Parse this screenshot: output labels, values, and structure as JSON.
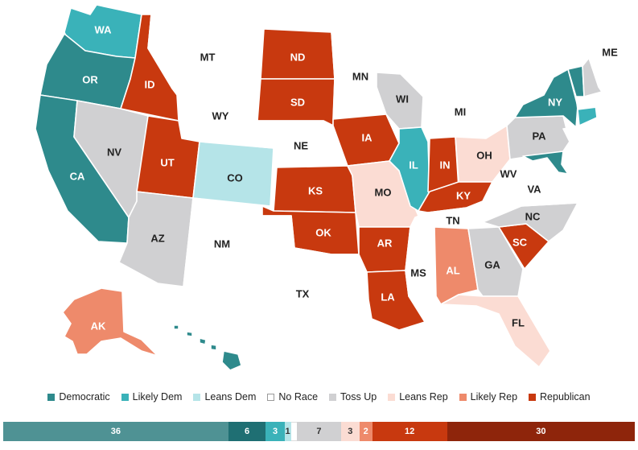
{
  "colors": {
    "Democratic": "#2e8a8c",
    "Likely Dem": "#3ab2b9",
    "Leans Dem": "#b5e4e8",
    "No Race": "#ffffff",
    "Toss Up": "#d0d0d2",
    "Leans Rep": "#fbdcd3",
    "Likely Rep": "#ee8a6b",
    "Republican": "#c8390f"
  },
  "states": {
    "WA": {
      "label": "WA",
      "rating": "Likely Dem"
    },
    "OR": {
      "label": "OR",
      "rating": "Democratic"
    },
    "CA": {
      "label": "CA",
      "rating": "Democratic"
    },
    "ID": {
      "label": "ID",
      "rating": "Republican"
    },
    "NV": {
      "label": "NV",
      "rating": "Toss Up"
    },
    "MT": {
      "label": "MT",
      "rating": "No Race"
    },
    "WY": {
      "label": "WY",
      "rating": "No Race"
    },
    "UT": {
      "label": "UT",
      "rating": "Republican"
    },
    "AZ": {
      "label": "AZ",
      "rating": "Toss Up"
    },
    "CO": {
      "label": "CO",
      "rating": "Leans Dem"
    },
    "NM": {
      "label": "NM",
      "rating": "No Race"
    },
    "ND": {
      "label": "ND",
      "rating": "Republican"
    },
    "SD": {
      "label": "SD",
      "rating": "Republican"
    },
    "NE": {
      "label": "NE",
      "rating": "No Race"
    },
    "KS": {
      "label": "KS",
      "rating": "Republican"
    },
    "OK": {
      "label": "OK",
      "rating": "Republican"
    },
    "TX": {
      "label": "TX",
      "rating": "No Race"
    },
    "MN": {
      "label": "MN",
      "rating": "No Race"
    },
    "IA": {
      "label": "IA",
      "rating": "Republican"
    },
    "MO": {
      "label": "MO",
      "rating": "Leans Rep"
    },
    "AR": {
      "label": "AR",
      "rating": "Republican"
    },
    "LA": {
      "label": "LA",
      "rating": "Republican"
    },
    "WI": {
      "label": "WI",
      "rating": "Toss Up"
    },
    "IL": {
      "label": "IL",
      "rating": "Likely Dem"
    },
    "MI": {
      "label": "MI",
      "rating": "No Race"
    },
    "IN": {
      "label": "IN",
      "rating": "Republican"
    },
    "OH": {
      "label": "OH",
      "rating": "Leans Rep"
    },
    "KY": {
      "label": "KY",
      "rating": "Republican"
    },
    "TN": {
      "label": "TN",
      "rating": "No Race"
    },
    "MS": {
      "label": "MS",
      "rating": "No Race"
    },
    "AL": {
      "label": "AL",
      "rating": "Likely Rep"
    },
    "GA": {
      "label": "GA",
      "rating": "Toss Up"
    },
    "FL": {
      "label": "FL",
      "rating": "Leans Rep"
    },
    "SC": {
      "label": "SC",
      "rating": "Republican"
    },
    "NC": {
      "label": "NC",
      "rating": "Toss Up"
    },
    "VA": {
      "label": "VA",
      "rating": "No Race"
    },
    "WV": {
      "label": "WV",
      "rating": "No Race"
    },
    "PA": {
      "label": "PA",
      "rating": "Toss Up"
    },
    "NY": {
      "label": "NY",
      "rating": "Democratic"
    },
    "ME": {
      "label": "ME",
      "rating": "No Race"
    },
    "VT": {
      "label": "",
      "rating": "Democratic"
    },
    "NH": {
      "label": "",
      "rating": "Toss Up"
    },
    "MA": {
      "label": "",
      "rating": "No Race"
    },
    "CT": {
      "label": "",
      "rating": "Likely Dem"
    },
    "RI": {
      "label": "",
      "rating": "No Race"
    },
    "NJ": {
      "label": "",
      "rating": "No Race"
    },
    "DE": {
      "label": "",
      "rating": "No Race"
    },
    "MD": {
      "label": "",
      "rating": "Democratic"
    },
    "AK": {
      "label": "AK",
      "rating": "Likely Rep"
    },
    "HI": {
      "label": "",
      "rating": "Democratic"
    }
  },
  "legend": [
    {
      "label": "Democratic",
      "rating": "Democratic"
    },
    {
      "label": "Likely Dem",
      "rating": "Likely Dem"
    },
    {
      "label": "Leans Dem",
      "rating": "Leans Dem"
    },
    {
      "label": "No Race",
      "rating": "No Race"
    },
    {
      "label": "Toss Up",
      "rating": "Toss Up"
    },
    {
      "label": "Leans Rep",
      "rating": "Leans Rep"
    },
    {
      "label": "Likely Rep",
      "rating": "Likely Rep"
    },
    {
      "label": "Republican",
      "rating": "Republican"
    }
  ],
  "seat_bar": [
    {
      "label": "36",
      "count": 36,
      "color": "#4f9294"
    },
    {
      "label": "6",
      "count": 6,
      "color": "#1f6f73"
    },
    {
      "label": "3",
      "count": 3,
      "color": "#3ab2b9"
    },
    {
      "label": "1",
      "count": 1,
      "color": "#b5e4e8"
    },
    {
      "label": "",
      "count": 1,
      "color": "#ffffff"
    },
    {
      "label": "7",
      "count": 7,
      "color": "#d0d0d2"
    },
    {
      "label": "3",
      "count": 3,
      "color": "#fbdcd3"
    },
    {
      "label": "2",
      "count": 2,
      "color": "#ee8a6b"
    },
    {
      "label": "12",
      "count": 12,
      "color": "#c8390f"
    },
    {
      "label": "30",
      "count": 30,
      "color": "#8e250b"
    }
  ]
}
